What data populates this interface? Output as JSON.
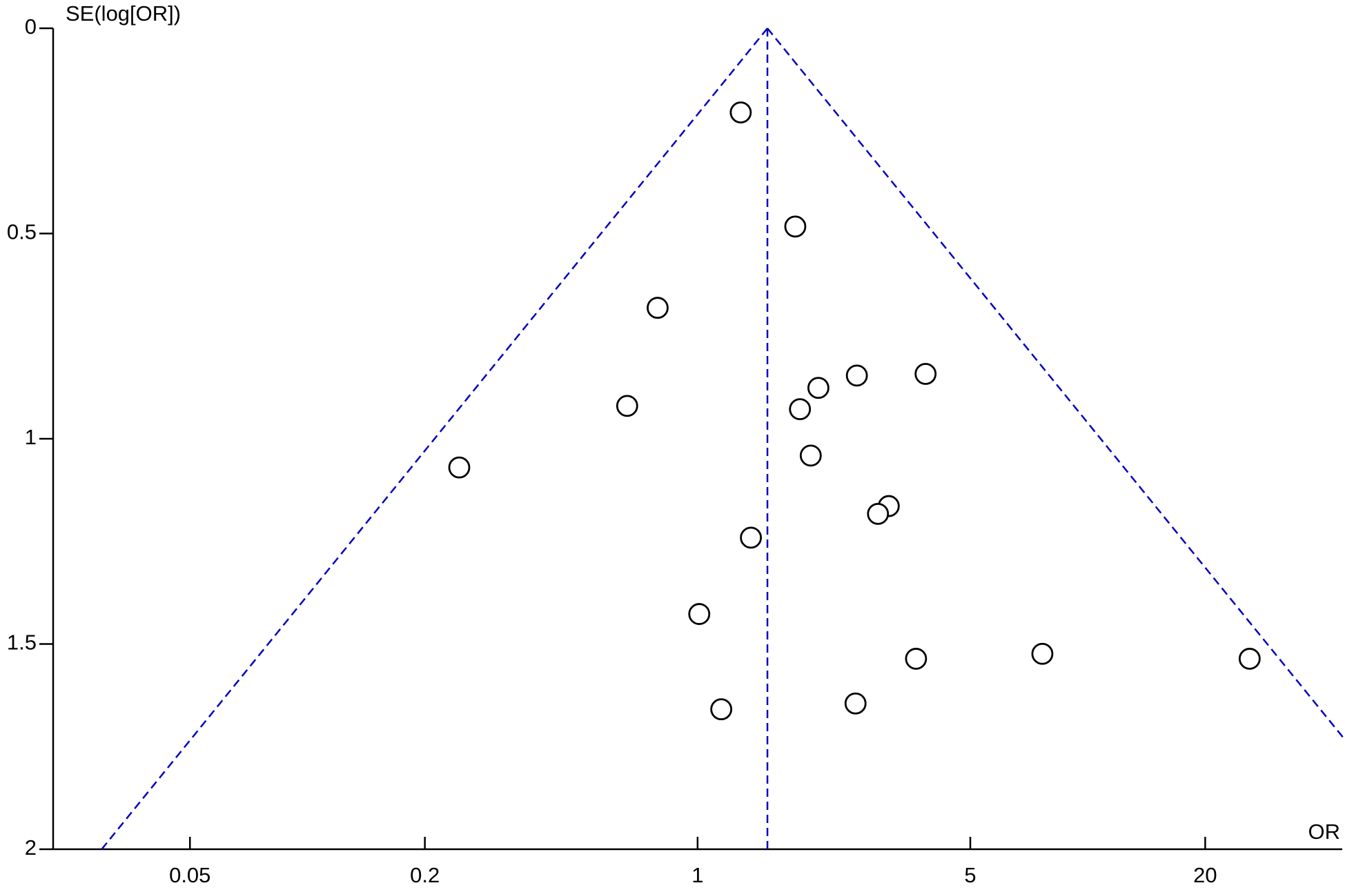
{
  "chart_data": {
    "type": "funnel",
    "x_label": "OR",
    "y_label": "SE(log[OR])",
    "x_log": true,
    "y_inverted": true,
    "xlim": [
      0.0223,
      44.9
    ],
    "xticks": [
      0.05,
      0.2,
      1,
      5,
      20
    ],
    "ylim": [
      0,
      2
    ],
    "yticks": [
      0,
      0.5,
      1,
      1.5,
      2
    ],
    "points": {
      "color": "#000000",
      "x": [
        1.29,
        1.78,
        0.79,
        0.66,
        0.245,
        2.04,
        2.56,
        3.84,
        1.83,
        1.95,
        3.09,
        2.9,
        1.37,
        1.01,
        1.15,
        2.54,
        3.63,
        7.65,
        26.0
      ],
      "y": [
        0.205,
        0.483,
        0.681,
        0.92,
        1.07,
        0.876,
        0.846,
        0.842,
        0.928,
        1.041,
        1.164,
        1.183,
        1.241,
        1.427,
        1.659,
        1.645,
        1.536,
        1.524,
        1.536
      ]
    },
    "lines": [
      {
        "color": "#0000c0",
        "x": [
          1.51,
          1.51
        ],
        "y": [
          0,
          2
        ]
      },
      {
        "color": "#0000c0",
        "x": [
          1.51,
          0.0297
        ],
        "y": [
          0,
          2
        ]
      },
      {
        "color": "#0000c0",
        "x": [
          1.51,
          77.1
        ],
        "y": [
          0,
          2
        ]
      }
    ]
  }
}
